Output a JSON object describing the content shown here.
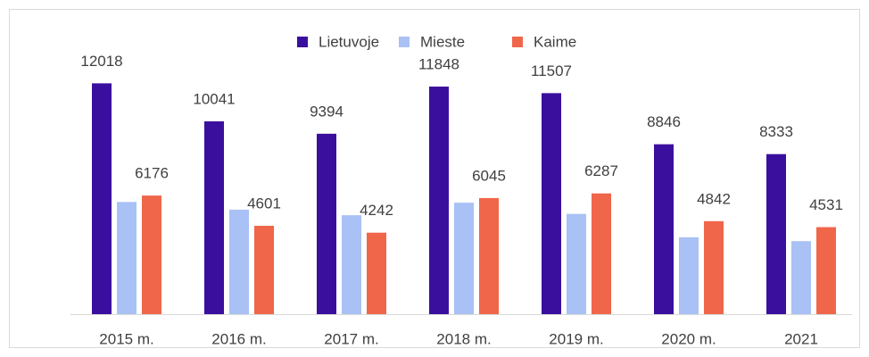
{
  "chart_data": {
    "type": "bar",
    "categories": [
      "2015 m.",
      "2016 m.",
      "2017 m.",
      "2018 m.",
      "2019 m.",
      "2020 m.",
      "2021"
    ],
    "series": [
      {
        "name": "Lietuvoje",
        "color": "#3b0f9e",
        "values": [
          12018,
          10041,
          9394,
          11848,
          11507,
          8846,
          8333
        ],
        "show_labels": true
      },
      {
        "name": "Mieste",
        "color": "#a9c1f5",
        "values": [
          5842,
          5440,
          5152,
          5803,
          5220,
          4004,
          3802
        ],
        "show_labels": false
      },
      {
        "name": "Kaime",
        "color": "#f0664a",
        "values": [
          6176,
          4601,
          4242,
          6045,
          6287,
          4842,
          4531
        ],
        "show_labels": true
      }
    ],
    "ylim": [
      0,
      12500
    ],
    "legend": "top"
  }
}
